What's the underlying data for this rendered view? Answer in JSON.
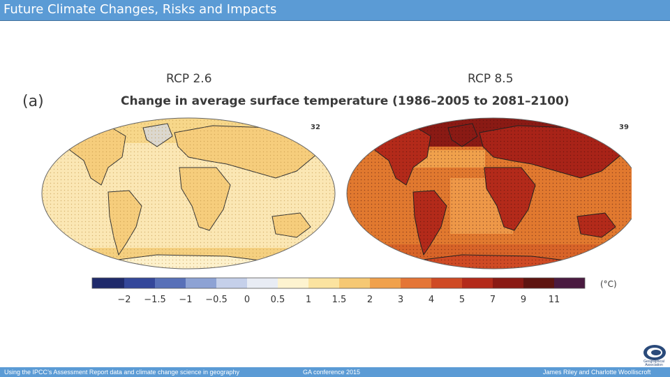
{
  "header": {
    "title": "Future Climate Changes, Risks and Impacts"
  },
  "figure": {
    "panel_label": "(a)",
    "scenario_left": "RCP 2.6",
    "scenario_right": "RCP 8.5",
    "heading": "Change in average surface temperature (1986–2005 to 2081–2100)",
    "count_left": "32",
    "count_right": "39",
    "colorbar": {
      "unit": "(°C)",
      "ticks": [
        "−2",
        "−1.5",
        "−1",
        "−0.5",
        "0",
        "0.5",
        "1",
        "1.5",
        "2",
        "3",
        "4",
        "5",
        "7",
        "9",
        "11"
      ],
      "colors": [
        "#1f2a6b",
        "#34479a",
        "#5870b8",
        "#8da2d4",
        "#c5d0ea",
        "#e8ecf4",
        "#fdf3d0",
        "#fbe3a0",
        "#f6c873",
        "#f0a14c",
        "#e47536",
        "#cf4a24",
        "#b32a1a",
        "#8a1a14",
        "#5e1410",
        "#4a1a40"
      ]
    }
  },
  "footer": {
    "left": "Using the IPCC’s Assessment Report data and climate change science in geography",
    "center": "GA conference 2015",
    "right": "James Riley and Charlotte Woolliscroft"
  },
  "logo": {
    "icon": "geographical-association-logo-icon",
    "text_line1": "Geographical",
    "text_line2": "Association"
  }
}
